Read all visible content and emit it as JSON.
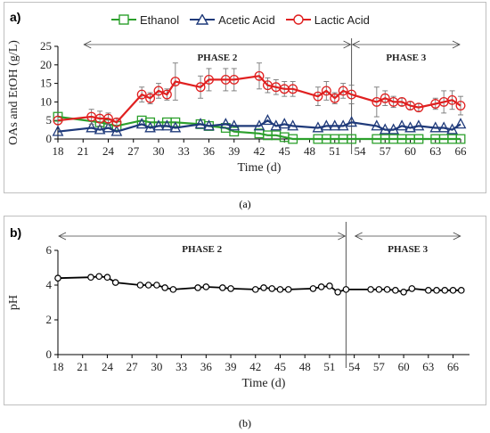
{
  "captions": {
    "a": "(a)",
    "b": "(b)"
  },
  "chart_data": [
    {
      "id": "a",
      "panel_label": "a)",
      "type": "line",
      "xlabel": "Time (d)",
      "ylabel": "OAs and EtOH (g/L)",
      "xlim": [
        18,
        66
      ],
      "ylim": [
        0,
        25
      ],
      "xticks": [
        18,
        21,
        24,
        27,
        30,
        33,
        36,
        39,
        42,
        45,
        48,
        51,
        54,
        57,
        60,
        63,
        66
      ],
      "yticks": [
        0,
        5,
        10,
        15,
        20,
        25
      ],
      "grid": false,
      "legend_position": "top",
      "phase_divider_x": 53,
      "phases": [
        {
          "label": "PHASE 2",
          "from": 21,
          "to": 53
        },
        {
          "label": "PHASE 3",
          "from": 53,
          "to": 66
        }
      ],
      "series": [
        {
          "name": "Ethanol",
          "color": "#2ca02c",
          "marker": "square",
          "x": [
            18,
            23,
            24,
            25,
            28,
            29,
            31,
            32,
            35,
            36,
            38,
            39,
            42,
            43,
            44,
            45,
            46,
            49,
            50,
            51,
            52,
            53,
            56,
            57,
            58,
            59,
            60,
            61,
            63,
            64,
            65,
            66
          ],
          "y": [
            6,
            4.5,
            4,
            3.5,
            5,
            4.5,
            4.5,
            4.5,
            4,
            3.5,
            3,
            2,
            1.5,
            1,
            1,
            0.5,
            0,
            0,
            0,
            0,
            0,
            0,
            0,
            0,
            0,
            0,
            0,
            0,
            0,
            0,
            0,
            0
          ]
        },
        {
          "name": "Acetic Acid",
          "color": "#1f3a7a",
          "marker": "triangle",
          "x": [
            18,
            22,
            23,
            24,
            25,
            28,
            29,
            30,
            31,
            32,
            35,
            36,
            38,
            39,
            42,
            43,
            44,
            45,
            46,
            49,
            50,
            51,
            52,
            53,
            56,
            57,
            58,
            59,
            60,
            61,
            63,
            64,
            65,
            66
          ],
          "y": [
            2,
            3,
            2.5,
            3,
            2,
            4,
            3,
            3.5,
            3.5,
            3,
            4,
            3.5,
            4,
            3.5,
            3.5,
            5,
            3.5,
            4,
            3.5,
            3,
            3.5,
            3.5,
            3.5,
            4.5,
            3.5,
            2.5,
            2.5,
            3.5,
            3,
            3.5,
            3,
            3,
            2.5,
            4
          ]
        },
        {
          "name": "Lactic Acid",
          "color": "#e02020",
          "marker": "circle",
          "x": [
            18,
            22,
            23,
            24,
            25,
            28,
            29,
            30,
            31,
            32,
            35,
            36,
            38,
            39,
            42,
            43,
            44,
            45,
            46,
            49,
            50,
            51,
            52,
            53,
            56,
            57,
            58,
            59,
            60,
            61,
            63,
            64,
            65,
            66
          ],
          "y": [
            5,
            6,
            5.5,
            5.5,
            4.5,
            12,
            11,
            13,
            12,
            15.5,
            14,
            16,
            16,
            16,
            17,
            14.5,
            14,
            13.5,
            13.5,
            11.5,
            13,
            11,
            13,
            12,
            10,
            11,
            10,
            10,
            9,
            8.5,
            9.5,
            10,
            10.5,
            9
          ],
          "error": [
            1,
            2,
            2,
            1.5,
            1,
            2,
            1.5,
            2,
            1.5,
            5,
            3,
            3,
            3,
            3,
            3.5,
            2,
            2,
            2,
            2,
            2.5,
            2.5,
            1.5,
            2,
            2.5,
            4,
            2,
            1.5,
            1,
            1,
            1,
            1.5,
            3,
            2.5,
            2.5
          ]
        }
      ]
    },
    {
      "id": "b",
      "panel_label": "b)",
      "type": "line",
      "xlabel": "Time (d)",
      "ylabel": "pH",
      "xlim": [
        18,
        68
      ],
      "ylim": [
        0,
        6
      ],
      "xticks": [
        18,
        21,
        24,
        27,
        30,
        33,
        36,
        39,
        42,
        45,
        48,
        51,
        54,
        57,
        60,
        63,
        66
      ],
      "yticks": [
        0,
        2,
        4,
        6
      ],
      "grid": false,
      "phase_divider_x": 53,
      "phases": [
        {
          "label": "PHASE 2",
          "from": 18,
          "to": 53
        },
        {
          "label": "PHASE 3",
          "from": 54,
          "to": 67
        }
      ],
      "series": [
        {
          "color": "#000000",
          "marker": "circle-open",
          "x": [
            18,
            22,
            23,
            24,
            25,
            28,
            29,
            30,
            31,
            32,
            35,
            36,
            38,
            39,
            42,
            43,
            44,
            45,
            46,
            49,
            50,
            51,
            52,
            53,
            56,
            57,
            58,
            59,
            60,
            61,
            63,
            64,
            65,
            66,
            67
          ],
          "y": [
            4.4,
            4.45,
            4.5,
            4.45,
            4.15,
            4.0,
            4.0,
            4.0,
            3.85,
            3.75,
            3.85,
            3.9,
            3.85,
            3.8,
            3.75,
            3.85,
            3.8,
            3.75,
            3.75,
            3.8,
            3.9,
            3.95,
            3.6,
            3.75,
            3.75,
            3.75,
            3.75,
            3.7,
            3.6,
            3.8,
            3.7,
            3.7,
            3.7,
            3.7,
            3.7
          ]
        }
      ]
    }
  ]
}
